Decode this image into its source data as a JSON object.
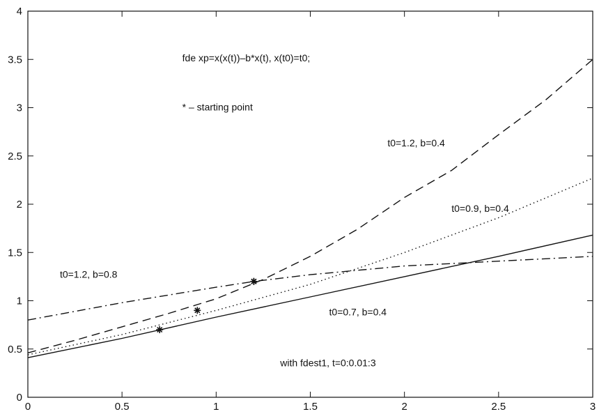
{
  "chart_data": {
    "type": "line",
    "title": "",
    "xlabel": "",
    "ylabel": "",
    "xlim": [
      0,
      3
    ],
    "ylim": [
      0,
      4
    ],
    "grid": false,
    "x_ticks": [
      0,
      0.5,
      1,
      1.5,
      2,
      2.5,
      3
    ],
    "x_tick_labels": [
      "0",
      "0.5",
      "1",
      "1.5",
      "2",
      "2.5",
      "3"
    ],
    "y_ticks": [
      0,
      0.5,
      1,
      1.5,
      2,
      2.5,
      3,
      3.5,
      4
    ],
    "y_tick_labels": [
      "0",
      "0.5",
      "1",
      "1.5",
      "2",
      "2.5",
      "3",
      "3.5",
      "4"
    ],
    "series": [
      {
        "style": "dashed",
        "color": "#111111",
        "x": [
          0,
          0.25,
          0.5,
          0.75,
          1,
          1.25,
          1.5,
          1.75,
          2,
          2.25,
          2.5,
          2.75,
          3
        ],
        "y": [
          0.46,
          0.59,
          0.73,
          0.87,
          1.02,
          1.22,
          1.46,
          1.74,
          2.07,
          2.35,
          2.72,
          3.08,
          3.5
        ],
        "start_point": [
          1.2,
          1.2
        ]
      },
      {
        "style": "dotted",
        "color": "#111111",
        "x": [
          0,
          0.5,
          1,
          1.5,
          2,
          2.5,
          3
        ],
        "y": [
          0.44,
          0.65,
          0.9,
          1.17,
          1.5,
          1.86,
          2.27
        ],
        "start_point": [
          0.9,
          0.9
        ]
      },
      {
        "style": "solid",
        "color": "#111111",
        "x": [
          0,
          0.5,
          1,
          1.5,
          2,
          2.5,
          3
        ],
        "y": [
          0.41,
          0.61,
          0.83,
          1.04,
          1.25,
          1.46,
          1.68
        ],
        "start_point": [
          0.7,
          0.7
        ]
      },
      {
        "style": "dashdot",
        "color": "#111111",
        "x": [
          0,
          0.5,
          1,
          1.2,
          1.5,
          2,
          2.5,
          3
        ],
        "y": [
          0.8,
          0.98,
          1.14,
          1.2,
          1.27,
          1.36,
          1.41,
          1.46
        ],
        "start_point": [
          1.2,
          1.2
        ]
      }
    ],
    "annotations": [
      {
        "text": "fde  xp=x(x(t))–b*x(t), x(t0)=t0;",
        "x": 0.82,
        "y": 3.48
      },
      {
        "text": "* – starting point",
        "x": 0.82,
        "y": 2.97
      },
      {
        "text": "t0=1.2,  b=0.4",
        "x": 1.91,
        "y": 2.6
      },
      {
        "text": "t0=0.9,  b=0.4",
        "x": 2.25,
        "y": 1.92
      },
      {
        "text": "t0=1.2,  b=0.8",
        "x": 0.17,
        "y": 1.24
      },
      {
        "text": "t0=0.7,  b=0.4",
        "x": 1.6,
        "y": 0.85
      },
      {
        "text": "with fdest1,  t=0:0.01:3",
        "x": 1.34,
        "y": 0.32
      }
    ]
  }
}
